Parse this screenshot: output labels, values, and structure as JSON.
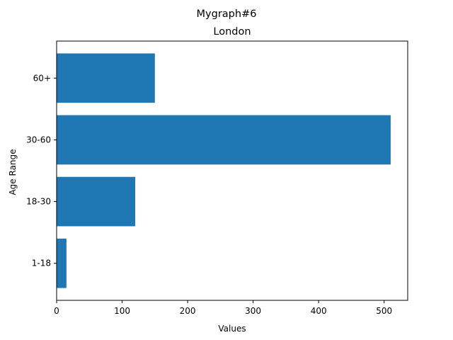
{
  "colors": {
    "bar": "#1f77b4",
    "axis": "#000000",
    "background": "#ffffff"
  },
  "chart_data": {
    "type": "bar",
    "orientation": "horizontal",
    "suptitle": "Mygraph#6",
    "title": "London",
    "xlabel": "Values",
    "ylabel": "Age Range",
    "categories": [
      "1-18",
      "18-30",
      "30-60",
      "60+"
    ],
    "values": [
      15,
      120,
      510,
      150
    ],
    "xlim": [
      0,
      536
    ],
    "xticks": [
      0,
      100,
      200,
      300,
      400,
      500
    ],
    "grid": false,
    "legend": null
  }
}
